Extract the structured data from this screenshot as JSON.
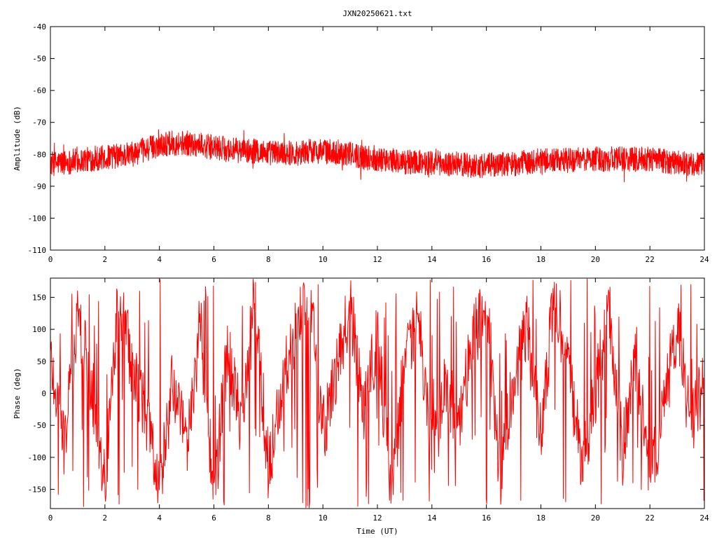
{
  "title": "JXN20250621.txt",
  "colors": {
    "trace": "#ff0000",
    "frame": "#000000",
    "background": "#ffffff"
  },
  "chart_data": [
    {
      "type": "line",
      "title": "JXN20250621.txt",
      "xlabel": "",
      "ylabel": "Amplitude (dB)",
      "xlim": [
        0,
        24
      ],
      "ylim": [
        -110,
        -40
      ],
      "xticks": [
        0,
        2,
        4,
        6,
        8,
        10,
        12,
        14,
        16,
        18,
        20,
        22,
        24
      ],
      "xtick_labels": [
        "0",
        "2",
        "4",
        "6",
        "8",
        "10",
        "12",
        "14",
        "16",
        "18",
        "20",
        "22",
        "24"
      ],
      "yticks": [
        -40,
        -50,
        -60,
        -70,
        -80,
        -90,
        -100,
        -110
      ],
      "ytick_labels": [
        "-40",
        "-50",
        "-60",
        "-70",
        "-80",
        "-90",
        "-100",
        "-110"
      ],
      "grid": false,
      "series": [
        {
          "color": "#ff0000",
          "noise_db": 2.5,
          "x": [
            0,
            0.5,
            1,
            1.5,
            2,
            2.5,
            3,
            3.5,
            4,
            4.5,
            5,
            5.5,
            6,
            6.5,
            7,
            7.5,
            8,
            8.5,
            9,
            9.5,
            10,
            10.5,
            11,
            11.5,
            12,
            12.5,
            13,
            13.5,
            14,
            14.5,
            15,
            15.5,
            16,
            16.5,
            17,
            17.5,
            18,
            18.5,
            19,
            19.5,
            20,
            20.5,
            21,
            21.5,
            22,
            22.5,
            23,
            23.5,
            24
          ],
          "y": [
            -83,
            -82.5,
            -82,
            -81.5,
            -81,
            -80.5,
            -80,
            -78.5,
            -77,
            -76.5,
            -76.5,
            -77,
            -78,
            -78.5,
            -79,
            -79,
            -79.5,
            -79.5,
            -79.5,
            -79,
            -79,
            -79.5,
            -80,
            -81,
            -81.5,
            -82,
            -82.5,
            -82.5,
            -82.5,
            -83,
            -83,
            -83.5,
            -83.5,
            -83,
            -83,
            -82.5,
            -82,
            -82,
            -82,
            -81.5,
            -81.5,
            -81.5,
            -81.5,
            -81.5,
            -81.5,
            -82,
            -82.5,
            -83,
            -83
          ]
        }
      ]
    },
    {
      "type": "line",
      "title": "",
      "xlabel": "Time (UT)",
      "ylabel": "Phase (deg)",
      "xlim": [
        0,
        24
      ],
      "ylim": [
        -180,
        180
      ],
      "xticks": [
        0,
        2,
        4,
        6,
        8,
        10,
        12,
        14,
        16,
        18,
        20,
        22,
        24
      ],
      "xtick_labels": [
        "0",
        "2",
        "4",
        "6",
        "8",
        "10",
        "12",
        "14",
        "16",
        "18",
        "20",
        "22",
        "24"
      ],
      "yticks": [
        150,
        100,
        50,
        0,
        -50,
        -100,
        -150
      ],
      "ytick_labels": [
        "150",
        "100",
        "50",
        "0",
        "-50",
        "-100",
        "-150"
      ],
      "grid": false,
      "series": [
        {
          "color": "#ff0000",
          "wrapped": true,
          "x": [
            0,
            0.5,
            1,
            1.5,
            2,
            2.5,
            3,
            3.5,
            4,
            4.5,
            5,
            5.5,
            6,
            6.5,
            7,
            7.5,
            8,
            8.5,
            9,
            9.5,
            10,
            10.5,
            11,
            11.5,
            12,
            12.5,
            13,
            13.5,
            14,
            14.5,
            15,
            15.5,
            16,
            16.5,
            17,
            17.5,
            18,
            18.5,
            19,
            19.5,
            20,
            20.5,
            21,
            21.5,
            22,
            22.5,
            23,
            23.5,
            24
          ],
          "y": [
            60,
            -80,
            120,
            20,
            -140,
            160,
            40,
            -30,
            -150,
            20,
            -90,
            110,
            -170,
            70,
            -50,
            150,
            -120,
            10,
            100,
            170,
            -60,
            30,
            140,
            -20,
            90,
            -160,
            50,
            120,
            -100,
            10,
            -40,
            80,
            150,
            -130,
            20,
            100,
            -70,
            160,
            40,
            -110,
            0,
            130,
            -90,
            60,
            -140,
            -30,
            110,
            -60,
            20
          ]
        }
      ]
    }
  ]
}
